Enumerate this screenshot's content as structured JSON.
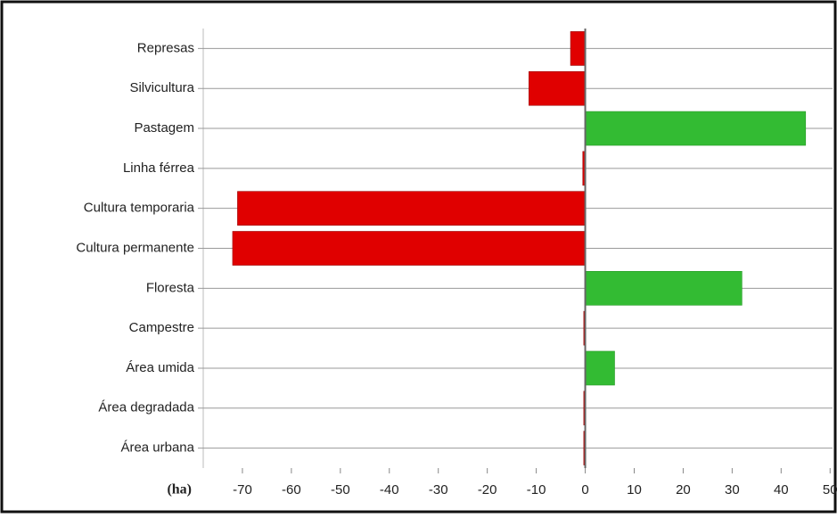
{
  "chart_data": {
    "type": "hbar",
    "xlabel": "(ha)",
    "categories": [
      "Represas",
      "Silvicultura",
      "Pastagem",
      "Linha férrea",
      "Cultura temporaria",
      "Cultura permanente",
      "Floresta",
      "Campestre",
      "Área umida",
      "Área degradada",
      "Área urbana"
    ],
    "values": [
      -3,
      -11.5,
      45,
      -0.5,
      -71,
      -72,
      32,
      -0.3,
      6,
      -0.3,
      -0.3
    ],
    "negative_color": "#e00000",
    "positive_color": "#33bb33",
    "xlim": [
      -78,
      50.5
    ],
    "xticks": [
      -70,
      -60,
      -50,
      -40,
      -30,
      -20,
      -10,
      0,
      10,
      20,
      30,
      40,
      50
    ],
    "grid": true
  }
}
